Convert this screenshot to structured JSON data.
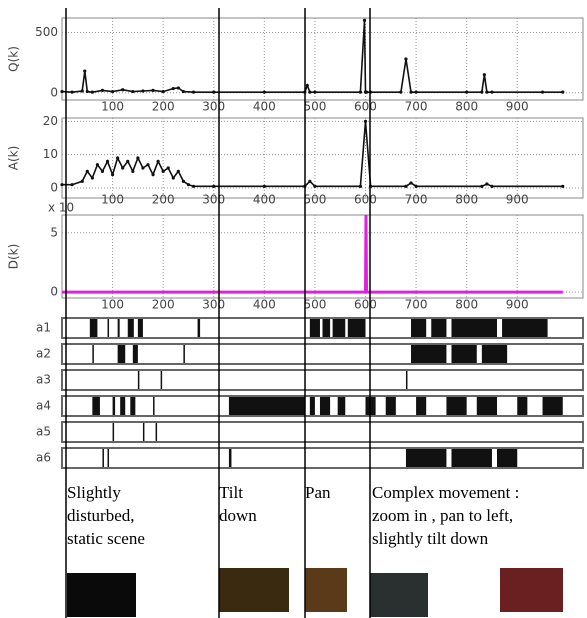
{
  "chart_data": [
    {
      "type": "line",
      "y_label": "Q(k)",
      "x": [
        0,
        20,
        40,
        45,
        50,
        60,
        80,
        100,
        120,
        140,
        160,
        180,
        200,
        220,
        230,
        240,
        260,
        300,
        400,
        480,
        485,
        490,
        500,
        590,
        598,
        600,
        602,
        610,
        670,
        680,
        690,
        700,
        800,
        830,
        835,
        840,
        850,
        950,
        990
      ],
      "values": [
        10,
        5,
        15,
        180,
        10,
        5,
        20,
        10,
        25,
        10,
        15,
        20,
        10,
        35,
        40,
        10,
        5,
        5,
        5,
        5,
        60,
        5,
        5,
        5,
        600,
        5,
        5,
        5,
        5,
        280,
        5,
        5,
        5,
        5,
        150,
        5,
        5,
        5,
        5
      ],
      "color": "#111111",
      "xlim": [
        0,
        1030
      ],
      "ylim": [
        -60,
        620
      ],
      "xticks": [
        100,
        200,
        300,
        400,
        500,
        600,
        700,
        800,
        900
      ],
      "yticks": [
        0,
        500
      ],
      "grid": true
    },
    {
      "type": "line",
      "y_label": "A(k)",
      "x": [
        0,
        20,
        40,
        50,
        60,
        70,
        80,
        90,
        100,
        110,
        120,
        130,
        140,
        150,
        160,
        170,
        180,
        190,
        200,
        210,
        220,
        230,
        240,
        250,
        260,
        300,
        400,
        480,
        490,
        500,
        590,
        600,
        610,
        680,
        690,
        700,
        830,
        840,
        850,
        990
      ],
      "values": [
        1,
        1,
        2,
        5,
        3,
        7,
        5,
        8,
        4,
        9,
        6,
        8,
        5,
        9,
        6,
        7,
        4,
        8,
        5,
        6,
        3,
        5,
        2,
        1,
        0.5,
        0.5,
        0.5,
        0.5,
        2,
        0.5,
        0.5,
        20,
        0.5,
        0.5,
        1.5,
        0.5,
        0.5,
        1.2,
        0.5,
        0.5
      ],
      "color": "#111111",
      "xlim": [
        0,
        1030
      ],
      "ylim": [
        -3,
        21
      ],
      "xticks": [
        100,
        200,
        300,
        400,
        500,
        600,
        700,
        800,
        900
      ],
      "yticks": [
        0,
        10,
        20
      ],
      "grid": true
    },
    {
      "type": "line",
      "y_label": "D(k)",
      "multiplier_label": "x 10",
      "x": [
        0,
        600,
        601,
        602,
        990
      ],
      "values": [
        0,
        0,
        6.5,
        0,
        0
      ],
      "color": "#e020e0",
      "xlim": [
        0,
        1030
      ],
      "ylim": [
        -0.5,
        6.5
      ],
      "xticks": [
        100,
        200,
        300,
        400,
        500,
        600,
        700,
        800,
        900
      ],
      "yticks": [
        0,
        5
      ],
      "grid": true
    }
  ],
  "rows": [
    {
      "label": "a1",
      "segments": [
        [
          55,
          70
        ],
        [
          90,
          93
        ],
        [
          110,
          114
        ],
        [
          130,
          142
        ],
        [
          150,
          160
        ],
        [
          268,
          273
        ],
        [
          490,
          510
        ],
        [
          515,
          530
        ],
        [
          535,
          560
        ],
        [
          565,
          600
        ],
        [
          690,
          720
        ],
        [
          730,
          760
        ],
        [
          770,
          860
        ],
        [
          870,
          960
        ]
      ]
    },
    {
      "label": "a2",
      "segments": [
        [
          60,
          63
        ],
        [
          110,
          125
        ],
        [
          140,
          150
        ],
        [
          240,
          243
        ],
        [
          690,
          760
        ],
        [
          770,
          820
        ],
        [
          830,
          880
        ]
      ]
    },
    {
      "label": "a3",
      "segments": [
        [
          150,
          152
        ],
        [
          195,
          197
        ],
        [
          680,
          682
        ]
      ]
    },
    {
      "label": "a4",
      "segments": [
        [
          60,
          75
        ],
        [
          100,
          105
        ],
        [
          115,
          125
        ],
        [
          135,
          145
        ],
        [
          180,
          182
        ],
        [
          330,
          480
        ],
        [
          490,
          500
        ],
        [
          510,
          530
        ],
        [
          545,
          560
        ],
        [
          600,
          620
        ],
        [
          640,
          660
        ],
        [
          700,
          720
        ],
        [
          760,
          800
        ],
        [
          820,
          860
        ],
        [
          900,
          920
        ],
        [
          950,
          990
        ]
      ]
    },
    {
      "label": "a5",
      "segments": [
        [
          100,
          102
        ],
        [
          160,
          162
        ],
        [
          185,
          187
        ]
      ]
    },
    {
      "label": "a6",
      "segments": [
        [
          80,
          82
        ],
        [
          90,
          92
        ],
        [
          330,
          335
        ],
        [
          680,
          760
        ],
        [
          770,
          850
        ],
        [
          860,
          900
        ]
      ]
    }
  ],
  "captions": [
    {
      "lines": [
        "Slightly",
        "disturbed,",
        "static scene"
      ]
    },
    {
      "lines": [
        "Tilt",
        "down"
      ]
    },
    {
      "lines": [
        "Pan"
      ]
    },
    {
      "lines": [
        "Complex movement :",
        "zoom in , pan to left,",
        "slightly tilt down"
      ]
    }
  ]
}
